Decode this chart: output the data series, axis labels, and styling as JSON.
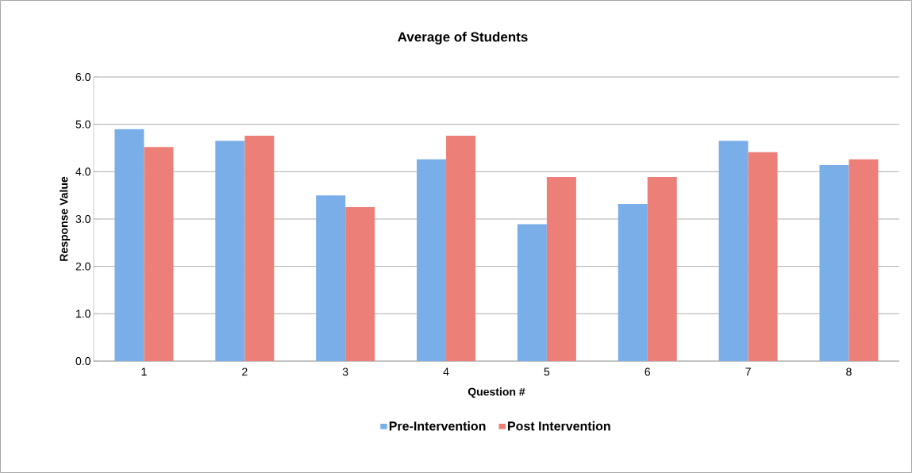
{
  "chart_data": {
    "type": "bar",
    "title": "Average of Students",
    "xlabel": "Question #",
    "ylabel": "Response Value",
    "categories": [
      "1",
      "2",
      "3",
      "4",
      "5",
      "6",
      "7",
      "8"
    ],
    "series": [
      {
        "name": "Pre-Intervention",
        "color": "#7aaee8",
        "values": [
          4.9,
          4.65,
          3.5,
          4.26,
          2.89,
          3.32,
          4.65,
          4.14
        ]
      },
      {
        "name": "Post Intervention",
        "color": "#ec8079",
        "values": [
          4.52,
          4.76,
          3.25,
          4.76,
          3.89,
          3.89,
          4.41,
          4.26
        ]
      }
    ],
    "ylim": [
      0,
      6
    ],
    "yticks": [
      {
        "value": 0,
        "label": "0.0"
      },
      {
        "value": 1,
        "label": "1.0"
      },
      {
        "value": 2,
        "label": "2.0"
      },
      {
        "value": 3,
        "label": "3.0"
      },
      {
        "value": 4,
        "label": "4.0"
      },
      {
        "value": 5,
        "label": "5.0"
      },
      {
        "value": 6,
        "label": "6.0"
      }
    ],
    "grid": "y",
    "legend": "bottom"
  }
}
